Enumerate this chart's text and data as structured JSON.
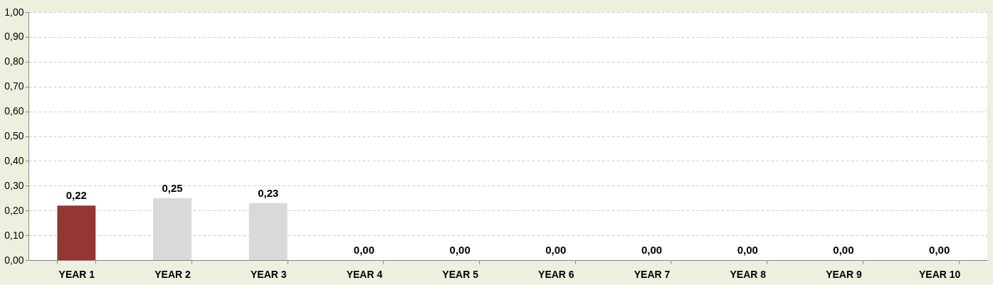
{
  "chart_data": {
    "type": "bar",
    "categories": [
      "YEAR 1",
      "YEAR 2",
      "YEAR 3",
      "YEAR 4",
      "YEAR 5",
      "YEAR 6",
      "YEAR 7",
      "YEAR 8",
      "YEAR 9",
      "YEAR 10"
    ],
    "values": [
      0.22,
      0.25,
      0.23,
      0,
      0,
      0,
      0,
      0,
      0,
      0
    ],
    "colors": [
      "#943634",
      "#d9d9d9",
      "#d9d9d9",
      "#d9d9d9",
      "#d9d9d9",
      "#d9d9d9",
      "#d9d9d9",
      "#d9d9d9",
      "#d9d9d9",
      "#d9d9d9"
    ],
    "value_labels": [
      "0,22",
      "0,25",
      "0,23",
      "0,00",
      "0,00",
      "0,00",
      "0,00",
      "0,00",
      "0,00",
      "0,00"
    ],
    "ylim": [
      0,
      1
    ],
    "yticks": [
      {
        "value": 0,
        "label": "0,00"
      },
      {
        "value": 0.1,
        "label": "0,10"
      },
      {
        "value": 0.2,
        "label": "0,20"
      },
      {
        "value": 0.3,
        "label": "0,30"
      },
      {
        "value": 0.4,
        "label": "0,40"
      },
      {
        "value": 0.5,
        "label": "0,50"
      },
      {
        "value": 0.6,
        "label": "0,60"
      },
      {
        "value": 0.7,
        "label": "0,70"
      },
      {
        "value": 0.8,
        "label": "0,80"
      },
      {
        "value": 0.9,
        "label": "0,90"
      },
      {
        "value": 1,
        "label": "1,00"
      }
    ],
    "grid": "y",
    "legend": false
  }
}
